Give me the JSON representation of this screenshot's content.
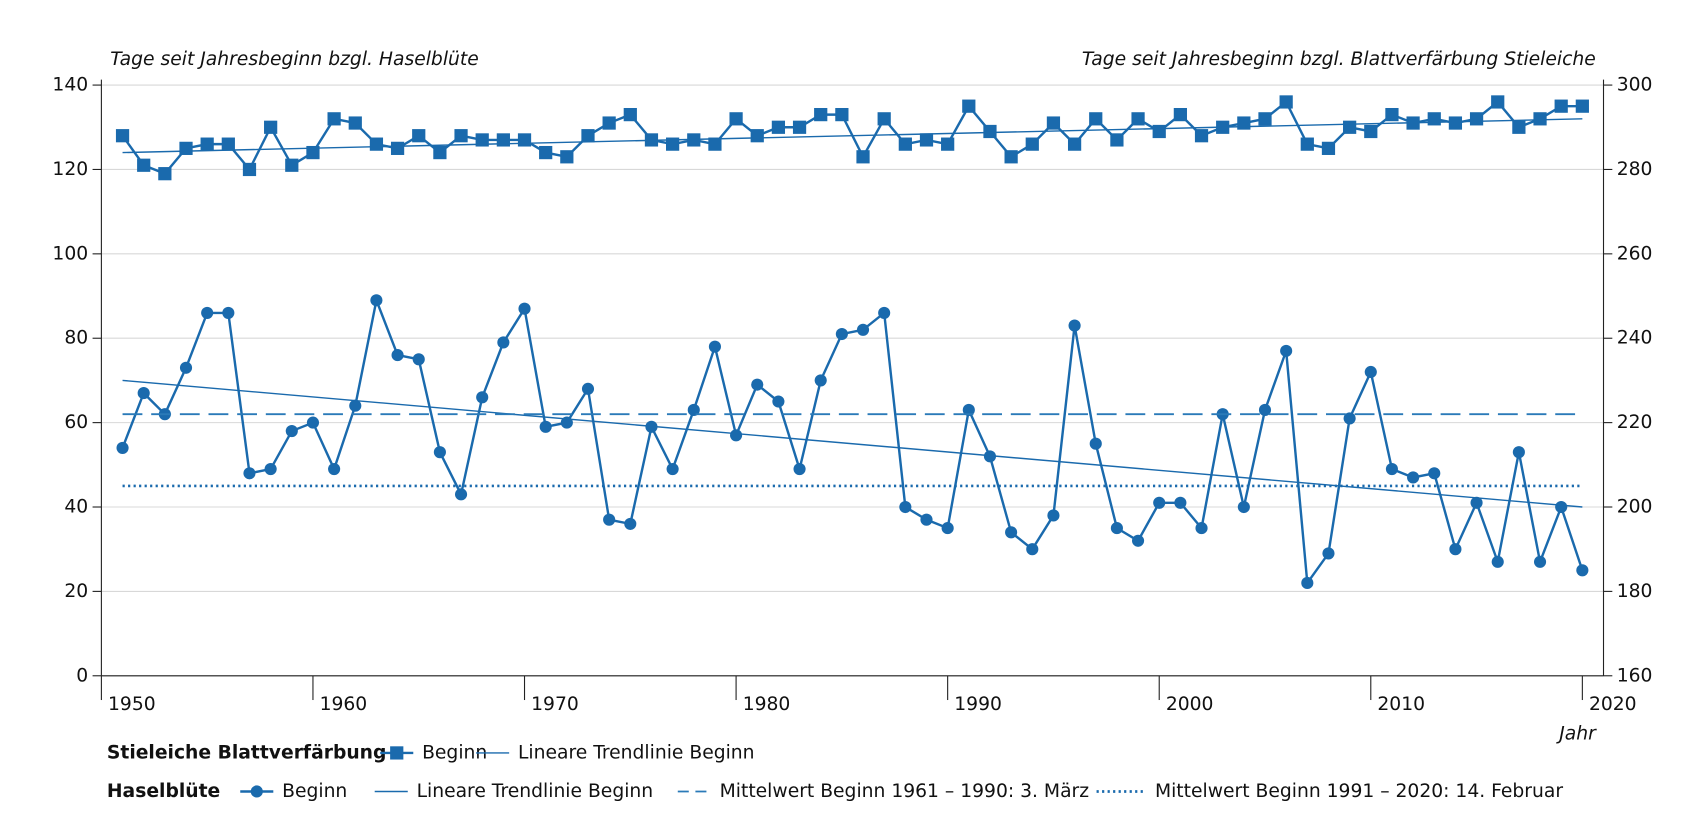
{
  "chart_data": {
    "type": "line",
    "y_label": "Tage seit Jahresbeginn bzgl. Haselblüte",
    "y2_label": "Tage seit Jahresbeginn bzgl. Blattverfärbung Stieleiche",
    "x_label": "Jahr",
    "x": [
      1951,
      1952,
      1953,
      1954,
      1955,
      1956,
      1957,
      1958,
      1959,
      1960,
      1961,
      1962,
      1963,
      1964,
      1965,
      1966,
      1967,
      1968,
      1969,
      1970,
      1971,
      1972,
      1973,
      1974,
      1975,
      1976,
      1977,
      1978,
      1979,
      1980,
      1981,
      1982,
      1983,
      1984,
      1985,
      1986,
      1987,
      1988,
      1989,
      1990,
      1991,
      1992,
      1993,
      1994,
      1995,
      1996,
      1997,
      1998,
      1999,
      2000,
      2001,
      2002,
      2003,
      2004,
      2005,
      2006,
      2007,
      2008,
      2009,
      2010,
      2011,
      2012,
      2013,
      2014,
      2015,
      2016,
      2017,
      2018,
      2019,
      2020
    ],
    "xlim": [
      1950,
      2021
    ],
    "xticks": [
      1950,
      1960,
      1970,
      1980,
      1990,
      2000,
      2010,
      2020
    ],
    "ylim": [
      0,
      140
    ],
    "yticks": [
      0,
      20,
      40,
      60,
      80,
      100,
      120,
      140
    ],
    "y2lim": [
      160,
      300
    ],
    "y2ticks": [
      160,
      180,
      200,
      220,
      240,
      260,
      280,
      300
    ],
    "grid": true,
    "series": [
      {
        "name": "Beginn",
        "color": "#1a6aad",
        "axis": "y2",
        "marker": "square",
        "style": "solid",
        "values": [
          288,
          281,
          279,
          285,
          286,
          286,
          280,
          290,
          281,
          284,
          292,
          291,
          286,
          285,
          288,
          284,
          288,
          287,
          287,
          287,
          284,
          283,
          288,
          291,
          293,
          287,
          286,
          287,
          286,
          292,
          288,
          290,
          290,
          293,
          293,
          283,
          292,
          286,
          287,
          286,
          295,
          289,
          283,
          286,
          291,
          286,
          292,
          287,
          292,
          289,
          293,
          288,
          290,
          291,
          292,
          296,
          286,
          285,
          290,
          289,
          293,
          291,
          292,
          291,
          292,
          296,
          290,
          292,
          295,
          295
        ]
      },
      {
        "name": "Lineare Trendlinie Beginn",
        "color": "#1a6aad",
        "axis": "y2",
        "style": "thin",
        "x": [
          1951,
          2020
        ],
        "values": [
          284,
          292
        ]
      },
      {
        "name": "Beginn",
        "color": "#1a6aad",
        "marker": "circle",
        "style": "solid",
        "values": [
          54,
          67,
          62,
          73,
          86,
          86,
          48,
          49,
          58,
          60,
          49,
          64,
          89,
          76,
          75,
          53,
          43,
          66,
          79,
          87,
          59,
          60,
          68,
          37,
          36,
          59,
          49,
          63,
          78,
          57,
          69,
          65,
          49,
          70,
          81,
          82,
          86,
          40,
          37,
          35,
          63,
          52,
          34,
          30,
          38,
          83,
          55,
          35,
          32,
          41,
          41,
          35,
          62,
          40,
          63,
          77,
          22,
          29,
          61,
          72,
          49,
          47,
          48,
          30,
          41,
          27,
          53,
          27,
          40,
          25
        ]
      },
      {
        "name": "Lineare Trendlinie Beginn",
        "color": "#1a6aad",
        "style": "thin",
        "x": [
          1951,
          2020
        ],
        "values": [
          70,
          40
        ]
      },
      {
        "name": "Mittelwert Beginn 1961 – 1990: 3. März",
        "color": "#2a7ab8",
        "style": "dashed",
        "x": [
          1951,
          2020
        ],
        "values": [
          62,
          62
        ]
      },
      {
        "name": "Mittelwert Beginn 1991 – 2020: 14. Februar",
        "color": "#1a6aad",
        "style": "dotted",
        "x": [
          1951,
          2020
        ],
        "values": [
          45,
          45
        ]
      }
    ],
    "legend_groups": [
      {
        "title": "Stieleiche Blattverfärbung",
        "series": [
          0,
          1
        ]
      },
      {
        "title": "Haselblüte",
        "series": [
          2,
          3,
          4,
          5
        ]
      }
    ]
  }
}
